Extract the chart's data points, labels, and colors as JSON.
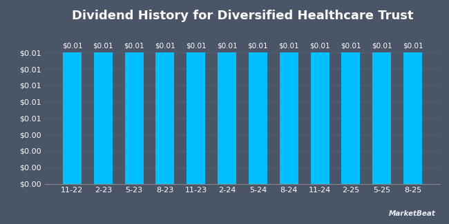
{
  "title": "Dividend History for Diversified Healthcare Trust",
  "categories": [
    "11-22",
    "2-23",
    "5-23",
    "8-23",
    "11-23",
    "2-24",
    "5-24",
    "8-24",
    "11-24",
    "2-25",
    "5-25",
    "8-25"
  ],
  "values": [
    0.01,
    0.01,
    0.01,
    0.01,
    0.01,
    0.01,
    0.01,
    0.01,
    0.01,
    0.01,
    0.01,
    0.01
  ],
  "bar_color": "#00BFFF",
  "background_color": "#4a5568",
  "plot_bg_color": "#4a5568",
  "grid_color": "#5a6478",
  "text_color": "#ffffff",
  "title_fontsize": 13,
  "tick_fontsize": 8,
  "bar_label_fontsize": 7.5,
  "ylim_max": 0.0118,
  "bar_width": 0.6,
  "watermark": "MarketBeat"
}
